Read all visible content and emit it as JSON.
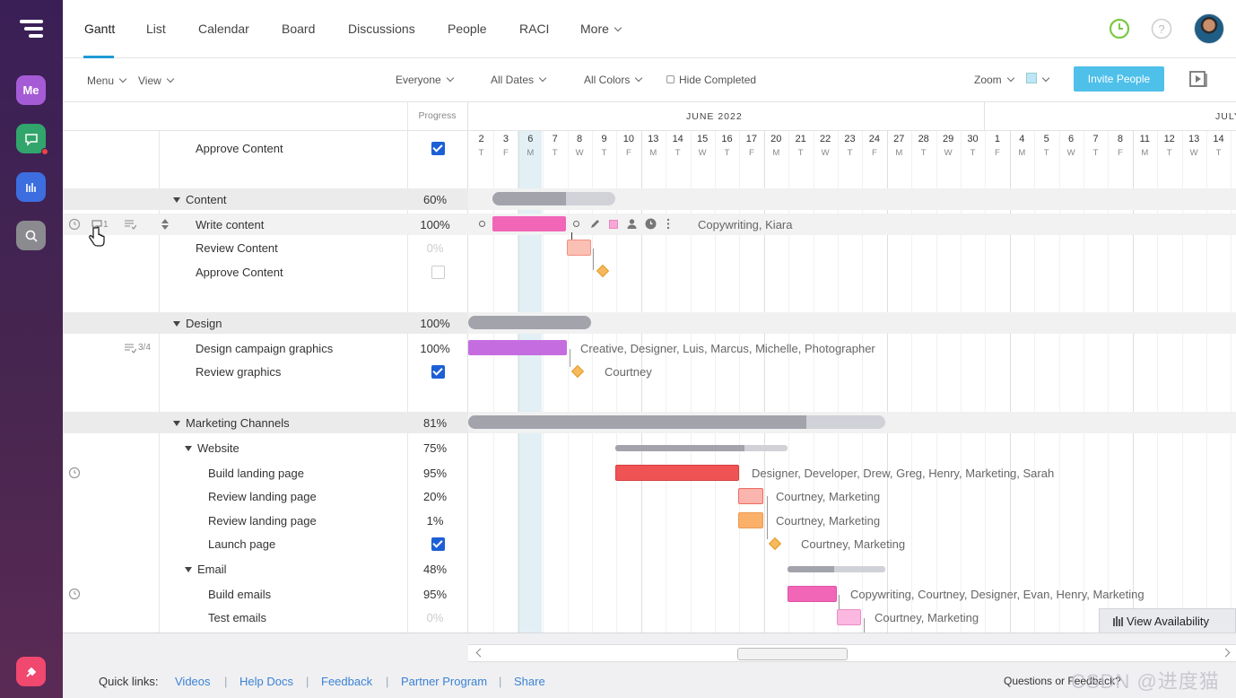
{
  "nav": {
    "tabs": [
      "Gantt",
      "List",
      "Calendar",
      "Board",
      "Discussions",
      "People",
      "RACI",
      "More"
    ],
    "active_tab": "Gantt"
  },
  "rail": {
    "me_label": "Me"
  },
  "toolbar": {
    "menu": "Menu",
    "view": "View",
    "everyone": "Everyone",
    "all_dates": "All Dates",
    "all_colors": "All Colors",
    "hide_completed": "Hide Completed",
    "zoom": "Zoom",
    "invite": "Invite People"
  },
  "grid": {
    "progress_header": "Progress"
  },
  "timeline": {
    "month1": "JUNE 2022",
    "month2": "JULY",
    "days": [
      {
        "d": "2",
        "w": "T"
      },
      {
        "d": "3",
        "w": "F"
      },
      {
        "d": "6",
        "w": "M"
      },
      {
        "d": "7",
        "w": "T"
      },
      {
        "d": "8",
        "w": "W"
      },
      {
        "d": "9",
        "w": "T"
      },
      {
        "d": "10",
        "w": "F"
      },
      {
        "d": "13",
        "w": "M"
      },
      {
        "d": "14",
        "w": "T"
      },
      {
        "d": "15",
        "w": "W"
      },
      {
        "d": "16",
        "w": "T"
      },
      {
        "d": "17",
        "w": "F"
      },
      {
        "d": "20",
        "w": "M"
      },
      {
        "d": "21",
        "w": "T"
      },
      {
        "d": "22",
        "w": "W"
      },
      {
        "d": "23",
        "w": "T"
      },
      {
        "d": "24",
        "w": "F"
      },
      {
        "d": "27",
        "w": "M"
      },
      {
        "d": "28",
        "w": "T"
      },
      {
        "d": "29",
        "w": "W"
      },
      {
        "d": "30",
        "w": "T"
      },
      {
        "d": "1",
        "w": "F"
      },
      {
        "d": "4",
        "w": "M"
      },
      {
        "d": "5",
        "w": "T"
      },
      {
        "d": "6",
        "w": "W"
      },
      {
        "d": "7",
        "w": "T"
      },
      {
        "d": "8",
        "w": "F"
      },
      {
        "d": "11",
        "w": "M"
      },
      {
        "d": "12",
        "w": "T"
      },
      {
        "d": "13",
        "w": "W"
      },
      {
        "d": "14",
        "w": "T"
      }
    ]
  },
  "rows": {
    "r0": {
      "label": "Approve Content"
    },
    "g1": {
      "label": "Content",
      "pct": "60%"
    },
    "r1": {
      "label": "Write content",
      "pct": "100%",
      "comments": "1",
      "assignees": "Copywriting, Kiara"
    },
    "r2": {
      "label": "Review Content",
      "pct": "0%"
    },
    "r3": {
      "label": "Approve Content"
    },
    "g2": {
      "label": "Design",
      "pct": "100%"
    },
    "r4": {
      "label": "Design campaign graphics",
      "pct": "100%",
      "checklist": "3/4",
      "assignees": "Creative, Designer, Luis, Marcus, Michelle, Photographer"
    },
    "r5": {
      "label": "Review graphics",
      "assignees": "Courtney"
    },
    "g3": {
      "label": "Marketing Channels",
      "pct": "81%"
    },
    "s1": {
      "label": "Website",
      "pct": "75%"
    },
    "r6": {
      "label": "Build landing page",
      "pct": "95%",
      "assignees": "Designer, Developer, Drew, Greg, Henry, Marketing, Sarah"
    },
    "r7": {
      "label": "Review landing page",
      "pct": "20%",
      "assignees": "Courtney, Marketing"
    },
    "r8": {
      "label": "Review landing page",
      "pct": "1%",
      "assignees": "Courtney, Marketing"
    },
    "r9": {
      "label": "Launch page",
      "assignees": "Courtney, Marketing"
    },
    "s2": {
      "label": "Email",
      "pct": "48%"
    },
    "r10": {
      "label": "Build emails",
      "pct": "95%",
      "assignees": "Copywriting, Courtney, Designer, Evan, Henry, Marketing"
    },
    "r11": {
      "label": "Test emails",
      "pct": "0%",
      "assignees": "Courtney, Marketing"
    }
  },
  "view_availability": "View Availability",
  "footer": {
    "quick_links": "Quick links:",
    "links": [
      "Videos",
      "Help Docs",
      "Feedback",
      "Partner Program",
      "Share"
    ],
    "questions": "Questions or Feedback?",
    "watermark": "CSDN @进度猫"
  },
  "colors": {
    "accent": "#1d9bd6",
    "pink": "#f266b8",
    "purple": "#c56de0",
    "red": "#f05353",
    "orange": "#fbb06a",
    "green": "#7ac943"
  }
}
